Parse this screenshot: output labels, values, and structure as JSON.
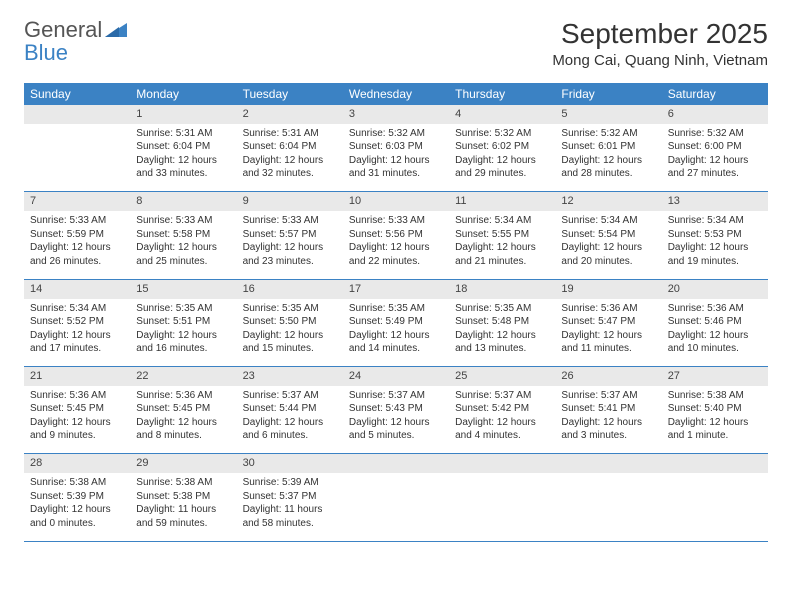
{
  "brand": {
    "word1": "General",
    "word2": "Blue",
    "logo_color": "#3b82c4"
  },
  "title": "September 2025",
  "location": "Mong Cai, Quang Ninh, Vietnam",
  "colors": {
    "header_bg": "#3b82c4",
    "header_text": "#ffffff",
    "daynum_bg": "#e9e9e9",
    "cell_border": "#3b82c4",
    "text": "#333333"
  },
  "weekdays": [
    "Sunday",
    "Monday",
    "Tuesday",
    "Wednesday",
    "Thursday",
    "Friday",
    "Saturday"
  ],
  "weeks": [
    [
      null,
      {
        "n": "1",
        "sr": "Sunrise: 5:31 AM",
        "ss": "Sunset: 6:04 PM",
        "dl": "Daylight: 12 hours and 33 minutes."
      },
      {
        "n": "2",
        "sr": "Sunrise: 5:31 AM",
        "ss": "Sunset: 6:04 PM",
        "dl": "Daylight: 12 hours and 32 minutes."
      },
      {
        "n": "3",
        "sr": "Sunrise: 5:32 AM",
        "ss": "Sunset: 6:03 PM",
        "dl": "Daylight: 12 hours and 31 minutes."
      },
      {
        "n": "4",
        "sr": "Sunrise: 5:32 AM",
        "ss": "Sunset: 6:02 PM",
        "dl": "Daylight: 12 hours and 29 minutes."
      },
      {
        "n": "5",
        "sr": "Sunrise: 5:32 AM",
        "ss": "Sunset: 6:01 PM",
        "dl": "Daylight: 12 hours and 28 minutes."
      },
      {
        "n": "6",
        "sr": "Sunrise: 5:32 AM",
        "ss": "Sunset: 6:00 PM",
        "dl": "Daylight: 12 hours and 27 minutes."
      }
    ],
    [
      {
        "n": "7",
        "sr": "Sunrise: 5:33 AM",
        "ss": "Sunset: 5:59 PM",
        "dl": "Daylight: 12 hours and 26 minutes."
      },
      {
        "n": "8",
        "sr": "Sunrise: 5:33 AM",
        "ss": "Sunset: 5:58 PM",
        "dl": "Daylight: 12 hours and 25 minutes."
      },
      {
        "n": "9",
        "sr": "Sunrise: 5:33 AM",
        "ss": "Sunset: 5:57 PM",
        "dl": "Daylight: 12 hours and 23 minutes."
      },
      {
        "n": "10",
        "sr": "Sunrise: 5:33 AM",
        "ss": "Sunset: 5:56 PM",
        "dl": "Daylight: 12 hours and 22 minutes."
      },
      {
        "n": "11",
        "sr": "Sunrise: 5:34 AM",
        "ss": "Sunset: 5:55 PM",
        "dl": "Daylight: 12 hours and 21 minutes."
      },
      {
        "n": "12",
        "sr": "Sunrise: 5:34 AM",
        "ss": "Sunset: 5:54 PM",
        "dl": "Daylight: 12 hours and 20 minutes."
      },
      {
        "n": "13",
        "sr": "Sunrise: 5:34 AM",
        "ss": "Sunset: 5:53 PM",
        "dl": "Daylight: 12 hours and 19 minutes."
      }
    ],
    [
      {
        "n": "14",
        "sr": "Sunrise: 5:34 AM",
        "ss": "Sunset: 5:52 PM",
        "dl": "Daylight: 12 hours and 17 minutes."
      },
      {
        "n": "15",
        "sr": "Sunrise: 5:35 AM",
        "ss": "Sunset: 5:51 PM",
        "dl": "Daylight: 12 hours and 16 minutes."
      },
      {
        "n": "16",
        "sr": "Sunrise: 5:35 AM",
        "ss": "Sunset: 5:50 PM",
        "dl": "Daylight: 12 hours and 15 minutes."
      },
      {
        "n": "17",
        "sr": "Sunrise: 5:35 AM",
        "ss": "Sunset: 5:49 PM",
        "dl": "Daylight: 12 hours and 14 minutes."
      },
      {
        "n": "18",
        "sr": "Sunrise: 5:35 AM",
        "ss": "Sunset: 5:48 PM",
        "dl": "Daylight: 12 hours and 13 minutes."
      },
      {
        "n": "19",
        "sr": "Sunrise: 5:36 AM",
        "ss": "Sunset: 5:47 PM",
        "dl": "Daylight: 12 hours and 11 minutes."
      },
      {
        "n": "20",
        "sr": "Sunrise: 5:36 AM",
        "ss": "Sunset: 5:46 PM",
        "dl": "Daylight: 12 hours and 10 minutes."
      }
    ],
    [
      {
        "n": "21",
        "sr": "Sunrise: 5:36 AM",
        "ss": "Sunset: 5:45 PM",
        "dl": "Daylight: 12 hours and 9 minutes."
      },
      {
        "n": "22",
        "sr": "Sunrise: 5:36 AM",
        "ss": "Sunset: 5:45 PM",
        "dl": "Daylight: 12 hours and 8 minutes."
      },
      {
        "n": "23",
        "sr": "Sunrise: 5:37 AM",
        "ss": "Sunset: 5:44 PM",
        "dl": "Daylight: 12 hours and 6 minutes."
      },
      {
        "n": "24",
        "sr": "Sunrise: 5:37 AM",
        "ss": "Sunset: 5:43 PM",
        "dl": "Daylight: 12 hours and 5 minutes."
      },
      {
        "n": "25",
        "sr": "Sunrise: 5:37 AM",
        "ss": "Sunset: 5:42 PM",
        "dl": "Daylight: 12 hours and 4 minutes."
      },
      {
        "n": "26",
        "sr": "Sunrise: 5:37 AM",
        "ss": "Sunset: 5:41 PM",
        "dl": "Daylight: 12 hours and 3 minutes."
      },
      {
        "n": "27",
        "sr": "Sunrise: 5:38 AM",
        "ss": "Sunset: 5:40 PM",
        "dl": "Daylight: 12 hours and 1 minute."
      }
    ],
    [
      {
        "n": "28",
        "sr": "Sunrise: 5:38 AM",
        "ss": "Sunset: 5:39 PM",
        "dl": "Daylight: 12 hours and 0 minutes."
      },
      {
        "n": "29",
        "sr": "Sunrise: 5:38 AM",
        "ss": "Sunset: 5:38 PM",
        "dl": "Daylight: 11 hours and 59 minutes."
      },
      {
        "n": "30",
        "sr": "Sunrise: 5:39 AM",
        "ss": "Sunset: 5:37 PM",
        "dl": "Daylight: 11 hours and 58 minutes."
      },
      null,
      null,
      null,
      null
    ]
  ]
}
